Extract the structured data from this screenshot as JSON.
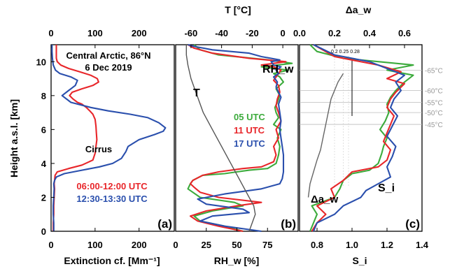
{
  "chart_data": [
    {
      "type": "line",
      "panel_label": "(a)",
      "xlabel": "Extinction cf. [Mm⁻¹]",
      "xlim": [
        0,
        280
      ],
      "xlim_top": [
        0,
        280
      ],
      "ylabel": "Height a.s.l. [km]",
      "ylim": [
        0,
        11
      ],
      "x_ticks": [
        0,
        100,
        200
      ],
      "y_ticks": [
        0,
        2,
        4,
        6,
        8,
        10
      ],
      "annotations": [
        "Central Arctic, 86°N",
        "6 Dec 2019",
        "Cirrus"
      ],
      "series": [
        {
          "name": "06:00-12:00 UTC",
          "color": "#e8262a",
          "x": [
            5,
            5,
            6,
            6,
            7,
            8,
            7,
            8,
            9,
            14,
            40,
            70,
            95,
            100,
            102,
            104,
            103,
            102,
            100,
            95,
            88,
            80,
            70,
            60,
            50,
            42,
            48,
            70,
            95,
            108,
            105,
            90,
            65,
            40,
            22,
            14,
            12,
            12,
            12,
            12
          ],
          "y": [
            0,
            0.5,
            1.0,
            1.5,
            2.0,
            2.5,
            2.8,
            3.0,
            3.3,
            3.5,
            3.7,
            3.9,
            4.2,
            4.6,
            5.0,
            5.4,
            5.8,
            6.2,
            6.6,
            6.9,
            7.1,
            7.3,
            7.5,
            7.6,
            7.8,
            8.0,
            8.2,
            8.4,
            8.6,
            8.8,
            9.0,
            9.2,
            9.4,
            9.6,
            9.8,
            10.0,
            10.2,
            10.5,
            10.8,
            11.0
          ]
        },
        {
          "name": "12:30-13:30 UTC",
          "color": "#2a4fad",
          "x": [
            6,
            6,
            5,
            5,
            6,
            7,
            6,
            8,
            12,
            30,
            70,
            110,
            140,
            160,
            170,
            175,
            200,
            235,
            255,
            260,
            245,
            220,
            180,
            130,
            90,
            45,
            25,
            40,
            55,
            60,
            45,
            20,
            10,
            5,
            3,
            2,
            2
          ],
          "y": [
            0,
            0.5,
            1.0,
            1.5,
            2.0,
            2.5,
            2.8,
            3.0,
            3.2,
            3.4,
            3.6,
            3.8,
            4.0,
            4.3,
            4.7,
            5.0,
            5.4,
            5.7,
            5.9,
            6.1,
            6.4,
            6.7,
            6.9,
            7.1,
            7.3,
            7.6,
            8.0,
            8.3,
            8.6,
            8.9,
            9.1,
            9.3,
            9.5,
            9.8,
            10.2,
            10.6,
            11.0
          ]
        }
      ]
    },
    {
      "type": "line",
      "panel_label": "(b)",
      "xlabel": "RH_w [%]",
      "xlim": [
        0,
        100
      ],
      "xlabel_top": "T [°C]",
      "xlim_top": [
        -70,
        10
      ],
      "x_ticks": [
        0,
        25,
        50,
        75
      ],
      "x_ticks_top": [
        -60,
        -40,
        -20,
        0
      ],
      "annotations": [
        "RH_w",
        "T",
        "05 UTC",
        "11 UTC",
        "17 UTC"
      ],
      "series": [
        {
          "name": "05 UTC",
          "color": "#3cab3c",
          "variable": "RH_w",
          "x": [
            55,
            40,
            20,
            15,
            30,
            55,
            48,
            20,
            10,
            12,
            14,
            22,
            40,
            50,
            60,
            75,
            82,
            84,
            85,
            83,
            86,
            80,
            84,
            82,
            81,
            83,
            85,
            82,
            88,
            85,
            80,
            92,
            70,
            95,
            76,
            35,
            20,
            15
          ],
          "y": [
            0,
            0.3,
            0.6,
            0.9,
            1.2,
            1.5,
            1.7,
            2.0,
            2.5,
            2.8,
            3.0,
            3.3,
            3.4,
            3.5,
            3.6,
            3.7,
            4.0,
            4.5,
            5.0,
            5.5,
            6.0,
            6.3,
            6.7,
            7.0,
            7.3,
            7.6,
            8.0,
            8.4,
            8.8,
            9.1,
            9.3,
            9.5,
            9.7,
            9.9,
            10.1,
            10.4,
            10.7,
            11.0
          ]
        },
        {
          "name": "11 UTC",
          "color": "#e8262a",
          "variable": "RH_w",
          "x": [
            55,
            35,
            18,
            12,
            25,
            50,
            70,
            35,
            20,
            15,
            12,
            14,
            22,
            35,
            55,
            70,
            80,
            82,
            80,
            84,
            82,
            86,
            84,
            82,
            83,
            85,
            84,
            80,
            82,
            84,
            86,
            80,
            70,
            90,
            60,
            30,
            15,
            10
          ],
          "y": [
            0,
            0.3,
            0.6,
            0.9,
            1.2,
            1.5,
            1.7,
            2.0,
            2.3,
            2.6,
            2.8,
            3.0,
            3.3,
            3.5,
            3.7,
            3.8,
            4.1,
            4.5,
            5.0,
            5.5,
            6.0,
            6.5,
            7.0,
            7.4,
            7.8,
            8.2,
            8.6,
            8.9,
            9.1,
            9.3,
            9.5,
            9.7,
            9.8,
            10.0,
            10.2,
            10.5,
            10.8,
            11.0
          ]
        },
        {
          "name": "17 UTC",
          "color": "#2a4fad",
          "variable": "RH_w",
          "x": [
            70,
            40,
            20,
            30,
            60,
            55,
            25,
            18,
            40,
            70,
            85,
            87,
            88,
            88,
            88,
            87,
            86,
            85,
            86,
            85,
            84,
            86,
            84,
            82,
            83,
            80,
            84,
            82,
            86,
            80,
            78,
            85,
            70,
            60,
            30,
            15,
            10
          ],
          "y": [
            0,
            0.3,
            0.6,
            0.9,
            1.1,
            1.3,
            1.6,
            1.9,
            2.2,
            2.5,
            2.8,
            3.1,
            3.5,
            4.0,
            4.5,
            5.0,
            5.5,
            6.0,
            6.5,
            7.0,
            7.5,
            7.9,
            8.2,
            8.5,
            8.8,
            9.1,
            9.3,
            9.5,
            9.7,
            9.8,
            10.0,
            10.1,
            10.3,
            10.5,
            10.7,
            10.9,
            11.0
          ]
        },
        {
          "name": "T",
          "color": "#555555",
          "variable": "T",
          "x": [
            -22,
            -20,
            -18,
            -19,
            -22,
            -28,
            -34,
            -40,
            -46,
            -52,
            -56,
            -60,
            -62,
            -63,
            -63
          ],
          "y": [
            0,
            0.5,
            1.0,
            1.5,
            2.0,
            3.0,
            4.0,
            5.0,
            6.0,
            7.0,
            8.0,
            9.0,
            9.8,
            10.4,
            11.0
          ]
        }
      ]
    },
    {
      "type": "line",
      "panel_label": "(c)",
      "xlabel": "S_i",
      "xlim": [
        0.7,
        1.4
      ],
      "xlabel_top": "Δa_w",
      "xlim_top": [
        0.0,
        0.7
      ],
      "x_ticks": [
        0.8,
        1.0,
        1.2,
        1.4
      ],
      "x_ticks_top": [
        0.0,
        0.2,
        0.4,
        0.6
      ],
      "annotations": [
        "S_i",
        "Δa_w",
        "0.2 0.25 0.28"
      ],
      "temperature_levels": [
        {
          "label": "-65°C",
          "height_km": 9.5
        },
        {
          "label": "-60°C",
          "height_km": 8.3
        },
        {
          "label": "-55°C",
          "height_km": 7.6
        },
        {
          "label": "-50°C",
          "height_km": 7.0
        },
        {
          "label": "-45°C",
          "height_km": 6.3
        }
      ],
      "reference_lines_daw": [
        0.2,
        0.25,
        0.28
      ],
      "series": [
        {
          "name": "05 UTC",
          "color": "#3cab3c",
          "variable": "S_i",
          "x": [
            0.76,
            0.78,
            0.8,
            0.77,
            0.9,
            0.93,
            0.95,
            1.0,
            1.1,
            1.15,
            1.17,
            1.18,
            1.2,
            1.16,
            1.19,
            1.21,
            1.2,
            1.22,
            1.25,
            1.3,
            1.35,
            1.2,
            1.35,
            0.95,
            0.8,
            0.76
          ],
          "y": [
            0,
            0.5,
            1.0,
            1.5,
            2.0,
            2.5,
            3.0,
            3.4,
            3.6,
            4.0,
            4.6,
            5.0,
            5.5,
            6.0,
            6.5,
            7.0,
            7.5,
            7.9,
            8.3,
            8.8,
            9.2,
            9.5,
            9.8,
            10.2,
            10.6,
            11.0
          ]
        },
        {
          "name": "11 UTC",
          "color": "#e8262a",
          "variable": "S_i",
          "x": [
            0.77,
            0.8,
            0.85,
            0.8,
            0.9,
            0.88,
            0.95,
            1.0,
            1.15,
            1.2,
            1.22,
            1.18,
            1.2,
            1.22,
            1.24,
            1.2,
            1.22,
            1.25,
            1.3,
            1.2,
            1.28,
            1.15,
            0.9,
            0.78
          ],
          "y": [
            0,
            0.5,
            1.0,
            1.5,
            2.0,
            2.5,
            3.0,
            3.5,
            3.8,
            4.2,
            4.8,
            5.3,
            5.8,
            6.3,
            6.8,
            7.3,
            7.8,
            8.2,
            8.7,
            9.0,
            9.4,
            9.8,
            10.3,
            11.0
          ]
        },
        {
          "name": "17 UTC",
          "color": "#2a4fad",
          "variable": "S_i",
          "x": [
            0.78,
            0.8,
            0.9,
            0.95,
            1.05,
            1.08,
            1.15,
            1.22,
            1.2,
            1.23,
            1.25,
            1.2,
            1.23,
            1.26,
            1.22,
            1.24,
            1.28,
            1.25,
            1.3,
            1.2,
            1.1,
            0.9,
            0.78
          ],
          "y": [
            0,
            0.5,
            1.0,
            1.5,
            2.0,
            2.4,
            2.8,
            3.2,
            3.8,
            4.4,
            5.0,
            5.6,
            6.2,
            6.8,
            7.3,
            7.8,
            8.3,
            8.8,
            9.2,
            9.6,
            10.0,
            10.4,
            11.0
          ]
        },
        {
          "name": "Δa_w",
          "color": "#666666",
          "variable": "Δa_w",
          "x": [
            0.05,
            0.06,
            0.08,
            0.1,
            0.12,
            0.13,
            0.14,
            0.15,
            0.16,
            0.17,
            0.18,
            0.2,
            0.22,
            0.25
          ],
          "y": [
            2.0,
            2.8,
            3.5,
            4.2,
            4.8,
            5.3,
            5.8,
            6.3,
            6.8,
            7.3,
            7.8,
            8.3,
            8.8,
            9.3
          ]
        }
      ]
    }
  ],
  "legend_a": {
    "line1": "06:00-12:00 UTC",
    "line2": "12:30-13:30 UTC"
  },
  "legend_b": {
    "line1": "05 UTC",
    "line2": "11 UTC",
    "line3": "17 UTC"
  },
  "colors": {
    "red": "#e8262a",
    "blue": "#2a4fad",
    "green": "#3cab3c",
    "grey": "#999999"
  }
}
